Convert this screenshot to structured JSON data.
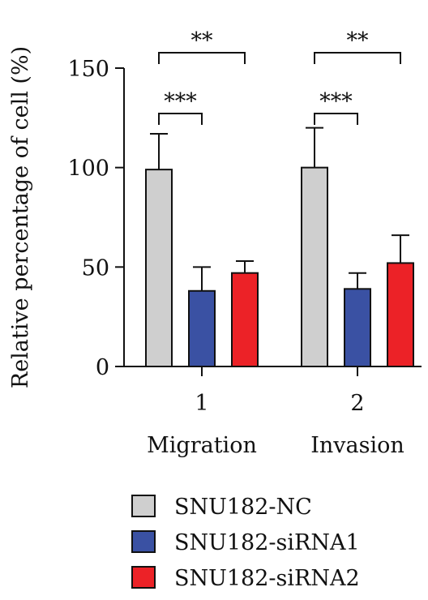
{
  "chart_data": {
    "type": "bar",
    "ylabel": "Relative percentage of cell (%)",
    "ylim": [
      0,
      150
    ],
    "yticks": [
      "0",
      "50",
      "100",
      "150"
    ],
    "categories": [
      "1",
      "2"
    ],
    "group_names": [
      "Migration",
      "Invasion"
    ],
    "series": [
      {
        "name": "SNU182-NC",
        "color": "#cfcfcf",
        "values": [
          99,
          100
        ],
        "errors": [
          18,
          20
        ]
      },
      {
        "name": "SNU182-siRNA1",
        "color": "#3a51a3",
        "values": [
          38,
          39
        ],
        "errors": [
          12,
          8
        ]
      },
      {
        "name": "SNU182-siRNA2",
        "color": "#ec2227",
        "values": [
          47,
          52
        ],
        "errors": [
          6,
          14
        ]
      }
    ],
    "annotations": [
      {
        "group": 0,
        "from": 0,
        "to": 1,
        "text": "***"
      },
      {
        "group": 0,
        "from": 0,
        "to": 2,
        "text": "**"
      },
      {
        "group": 1,
        "from": 0,
        "to": 1,
        "text": "***"
      },
      {
        "group": 1,
        "from": 0,
        "to": 2,
        "text": "**"
      }
    ],
    "legend_position": "bottom"
  }
}
